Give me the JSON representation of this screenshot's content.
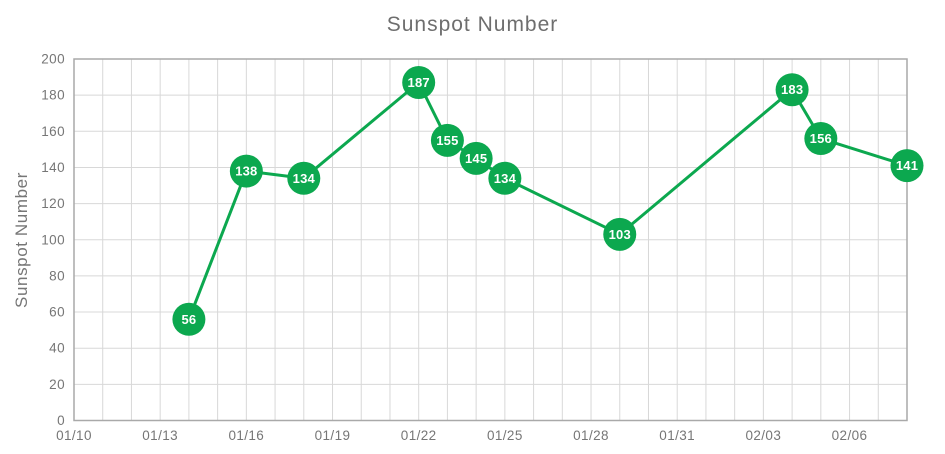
{
  "chart": {
    "title": "Sunspot Number",
    "y_axis_title": "Sunspot Number"
  },
  "chart_data": {
    "type": "line",
    "title": "Sunspot Number",
    "xlabel": "",
    "ylabel": "Sunspot Number",
    "series": [
      {
        "name": "Sunspot Number",
        "points": [
          {
            "date": "01/14",
            "value": 56
          },
          {
            "date": "01/16",
            "value": 138
          },
          {
            "date": "01/18",
            "value": 134
          },
          {
            "date": "01/22",
            "value": 187
          },
          {
            "date": "01/23",
            "value": 155
          },
          {
            "date": "01/24",
            "value": 145
          },
          {
            "date": "01/25",
            "value": 134
          },
          {
            "date": "01/29",
            "value": 103
          },
          {
            "date": "02/04",
            "value": 183
          },
          {
            "date": "02/05",
            "value": 156
          },
          {
            "date": "02/08",
            "value": 141
          }
        ]
      }
    ],
    "xlim": [
      "01/10",
      "02/08"
    ],
    "x_tick_labels": [
      "01/10",
      "01/13",
      "01/16",
      "01/19",
      "01/22",
      "01/25",
      "01/28",
      "01/31",
      "02/03",
      "02/06"
    ],
    "x_grid_interval_days": 1,
    "ylim": [
      0,
      200
    ],
    "y_tick_interval": 20,
    "y_tick_labels": [
      "0",
      "20",
      "40",
      "60",
      "80",
      "100",
      "120",
      "140",
      "160",
      "180",
      "200"
    ],
    "grid": true,
    "legend_position": "none",
    "data_labels": "inside-marker",
    "colors": {
      "line": "#0CA84F",
      "marker_fill": "#0CA84F",
      "marker_label": "#FFFFFF",
      "grid_line": "#D8D8D8",
      "plot_border": "#A9A9A9",
      "tick_label": "#767676",
      "title": "#6E6E6E"
    }
  }
}
